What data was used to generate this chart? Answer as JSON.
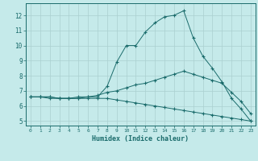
{
  "xlabel": "Humidex (Indice chaleur)",
  "ylabel": "",
  "bg_color": "#c5eaea",
  "grid_color": "#aad0d0",
  "line_color": "#1a6b6b",
  "x": [
    0,
    1,
    2,
    3,
    4,
    5,
    6,
    7,
    8,
    9,
    10,
    11,
    12,
    13,
    14,
    15,
    16,
    17,
    18,
    19,
    20,
    21,
    22,
    23
  ],
  "line1": [
    6.6,
    6.6,
    6.6,
    6.5,
    6.5,
    6.5,
    6.6,
    6.6,
    7.3,
    8.9,
    10.0,
    10.0,
    10.9,
    11.5,
    11.9,
    12.0,
    12.3,
    10.5,
    9.3,
    8.5,
    7.6,
    6.5,
    5.8,
    5.0
  ],
  "line2": [
    6.6,
    6.6,
    6.6,
    6.5,
    6.5,
    6.6,
    6.6,
    6.7,
    6.9,
    7.0,
    7.2,
    7.4,
    7.5,
    7.7,
    7.9,
    8.1,
    8.3,
    8.1,
    7.9,
    7.7,
    7.5,
    6.9,
    6.3,
    5.5
  ],
  "line3": [
    6.6,
    6.6,
    6.5,
    6.5,
    6.5,
    6.5,
    6.5,
    6.5,
    6.5,
    6.4,
    6.3,
    6.2,
    6.1,
    6.0,
    5.9,
    5.8,
    5.7,
    5.6,
    5.5,
    5.4,
    5.3,
    5.2,
    5.1,
    5.0
  ],
  "xlim": [
    -0.5,
    23.5
  ],
  "ylim": [
    4.7,
    12.8
  ],
  "yticks": [
    5,
    6,
    7,
    8,
    9,
    10,
    11,
    12
  ],
  "xticks": [
    0,
    1,
    2,
    3,
    4,
    5,
    6,
    7,
    8,
    9,
    10,
    11,
    12,
    13,
    14,
    15,
    16,
    17,
    18,
    19,
    20,
    21,
    22,
    23
  ]
}
